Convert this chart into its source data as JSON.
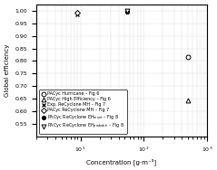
{
  "series": [
    {
      "label": "PACyc Hurricane – Fig 6",
      "marker": "o",
      "color": "black",
      "mfc": "white",
      "ms": 3.5,
      "mew": 0.7,
      "x": [
        500
      ],
      "y": [
        0.815
      ]
    },
    {
      "label": "PACyc High Efficiency – Fig 6",
      "marker": "^",
      "color": "black",
      "mfc": "white",
      "ms": 3.5,
      "mew": 0.7,
      "x": [
        500
      ],
      "y": [
        0.645
      ]
    },
    {
      "label": "Exp. ReCyclone MH – Fig 7",
      "marker": "x",
      "color": "black",
      "mfc": "black",
      "ms": 3.5,
      "mew": 0.9,
      "x": [
        9
      ],
      "y": [
        0.984
      ]
    },
    {
      "label": "PACyc ReCyclone MH – Fig 7",
      "marker": "D",
      "color": "black",
      "mfc": "white",
      "ms": 3.0,
      "mew": 0.7,
      "x": [
        9
      ],
      "y": [
        0.991
      ]
    },
    {
      "label": "PACyc ReCyclone EH$_{\\mathregular{mont}}$ – Fig 8",
      "marker": "o",
      "color": "black",
      "mfc": "black",
      "ms": 3.0,
      "mew": 0.7,
      "x": [
        55
      ],
      "y": [
        0.997
      ]
    },
    {
      "label": "PACyc ReCyclone EH$_{\\mathregular{probable}}$ – Fig 8",
      "marker": "v",
      "color": "black",
      "mfc": "white",
      "ms": 3.5,
      "mew": 0.7,
      "x": [
        55
      ],
      "y": [
        0.998
      ]
    }
  ],
  "xlim": [
    2,
    1000
  ],
  "ylim": [
    0.5,
    1.025
  ],
  "yticks": [
    0.55,
    0.6,
    0.65,
    0.7,
    0.75,
    0.8,
    0.85,
    0.9,
    0.95,
    1.0
  ],
  "ylabel": "Global efficiency",
  "xlabel": "Concentration [g·m⁻³]",
  "grid": true,
  "legend_fontsize": 3.5,
  "legend_loc": "lower center",
  "tick_labelsize": 4.5,
  "axis_labelsize": 5.0
}
